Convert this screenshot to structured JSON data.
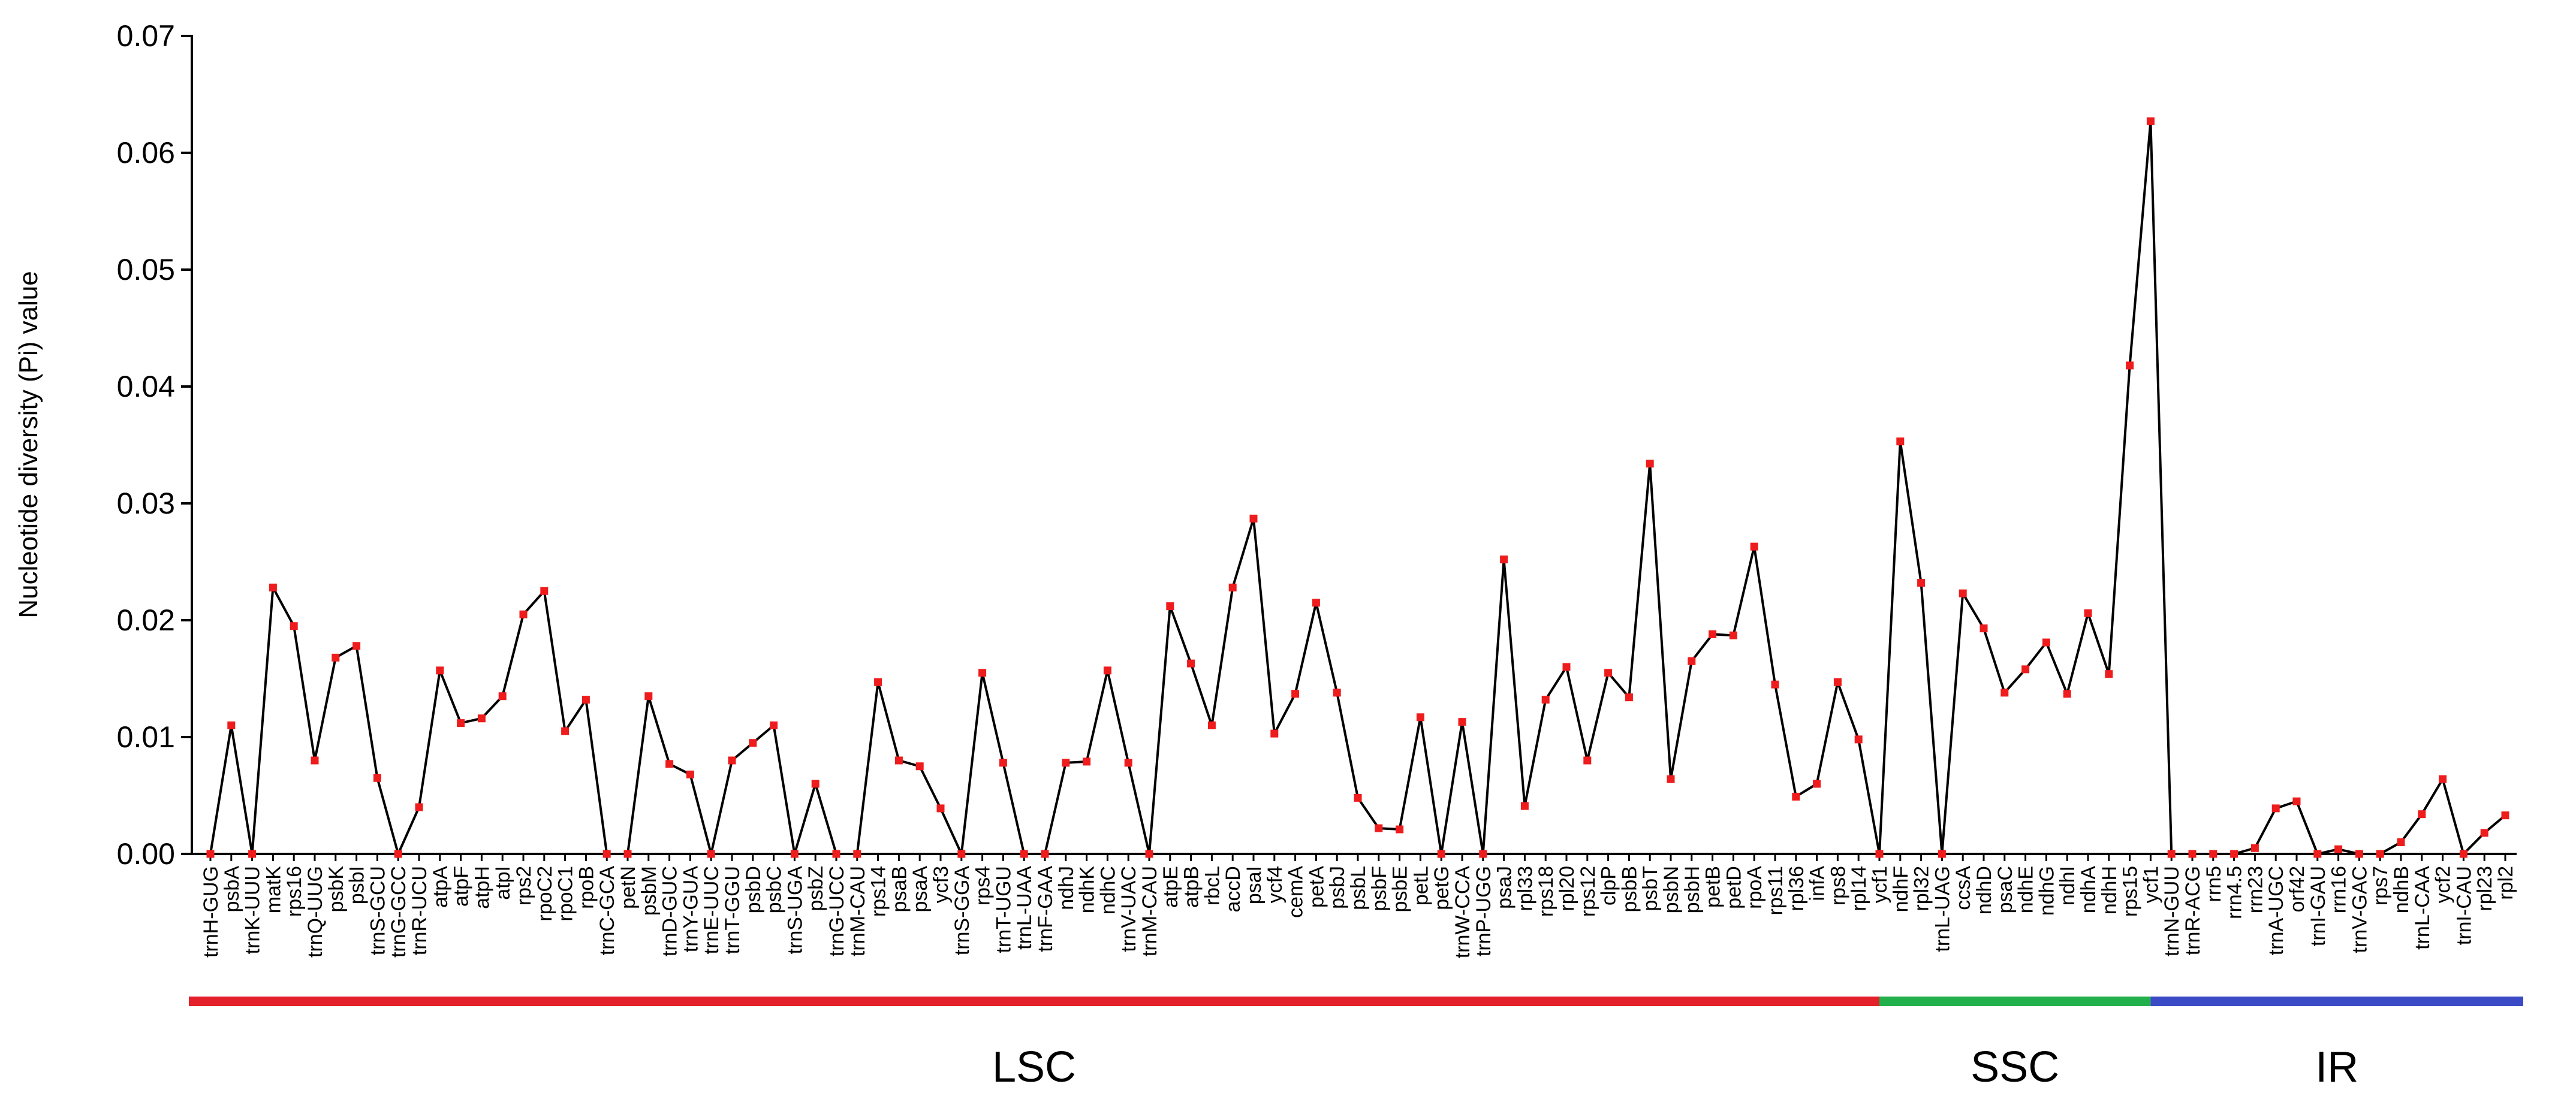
{
  "chart_data": {
    "type": "line",
    "y_label": "Nucleotide diversity (Pi) value",
    "categories": [
      "trnH-GUG",
      "psbA",
      "trnK-UUU",
      "matK",
      "rps16",
      "trnQ-UUG",
      "psbK",
      "psbI",
      "trnS-GCU",
      "trnG-GCC",
      "trnR-UCU",
      "atpA",
      "atpF",
      "atpH",
      "atpI",
      "rps2",
      "rpoC2",
      "rpoC1",
      "rpoB",
      "trnC-GCA",
      "petN",
      "psbM",
      "trnD-GUC",
      "trnY-GUA",
      "trnE-UUC",
      "trnT-GGU",
      "psbD",
      "psbC",
      "trnS-UGA",
      "psbZ",
      "trnG-UCC",
      "trnM-CAU",
      "rps14",
      "psaB",
      "psaA",
      "ycf3",
      "trnS-GGA",
      "rps4",
      "trnT-UGU",
      "trnL-UAA",
      "trnF-GAA",
      "ndhJ",
      "ndhK",
      "ndhC",
      "trnV-UAC",
      "trnM-CAU",
      "atpE",
      "atpB",
      "rbcL",
      "accD",
      "psaI",
      "ycf4",
      "cemA",
      "petA",
      "psbJ",
      "psbL",
      "psbF",
      "psbE",
      "petL",
      "petG",
      "trnW-CCA",
      "trnP-UGG",
      "psaJ",
      "rpl33",
      "rps18",
      "rpl20",
      "rps12",
      "clpP",
      "psbB",
      "psbT",
      "psbN",
      "psbH",
      "petB",
      "petD",
      "rpoA",
      "rps11",
      "rpl36",
      "infA",
      "rps8",
      "rpl14",
      "ycf1",
      "ndhF",
      "rpl32",
      "trnL-UAG",
      "ccsA",
      "ndhD",
      "psaC",
      "ndhE",
      "ndhG",
      "ndhI",
      "ndhA",
      "ndhH",
      "rps15",
      "ycf1",
      "trnN-GUU",
      "trnR-ACG",
      "rrn5",
      "rrn4.5",
      "rrn23",
      "trnA-UGC",
      "orf42",
      "trnI-GAU",
      "rrn16",
      "trnV-GAC",
      "rps7",
      "ndhB",
      "trnL-CAA",
      "ycf2",
      "trnI-CAU",
      "rpl23",
      "rpl2"
    ],
    "series": [
      {
        "color": "#000000",
        "marker_color": "#ee1c1c",
        "values": [
          0,
          0.011,
          0,
          0.0228,
          0.0195,
          0.008,
          0.0168,
          0.0178,
          0.0065,
          0,
          0.004,
          0.0157,
          0.0112,
          0.0116,
          0.0135,
          0.0205,
          0.0225,
          0.0105,
          0.0132,
          0,
          0,
          0.0135,
          0.0077,
          0.0068,
          0,
          0.008,
          0.0095,
          0.011,
          0,
          0.006,
          0,
          0,
          0.0147,
          0.008,
          0.0075,
          0.0039,
          0,
          0.0155,
          0.0078,
          0,
          0,
          0.0078,
          0.0079,
          0.0157,
          0.0078,
          0,
          0.0212,
          0.0163,
          0.011,
          0.0228,
          0.0287,
          0.0103,
          0.0137,
          0.0215,
          0.0138,
          0.0048,
          0.0022,
          0.0021,
          0.0117,
          0,
          0.0113,
          0,
          0.0252,
          0.0041,
          0.0132,
          0.016,
          0.008,
          0.0155,
          0.0134,
          0.0334,
          0.0064,
          0.0165,
          0.0188,
          0.0187,
          0.0263,
          0.0145,
          0.0049,
          0.006,
          0.0147,
          0.0098,
          0,
          0.0353,
          0.0232,
          0,
          0.0223,
          0.0193,
          0.0138,
          0.0158,
          0.0181,
          0.0137,
          0.0206,
          0.0154,
          0.0418,
          0.0627,
          0,
          0,
          0,
          0,
          0.0005,
          0.0039,
          0.0045,
          0,
          0.0004,
          0,
          0,
          0.001,
          0.0034,
          0.0064,
          0,
          0.0018,
          0.0033
        ]
      }
    ],
    "ylim": [
      0,
      0.07
    ],
    "yticks": [
      {
        "value": 0,
        "label": "0.00"
      },
      0.01,
      0.02,
      0.03,
      0.04,
      0.05,
      0.06,
      0.07
    ],
    "grid": false,
    "regions": [
      {
        "name": "LSC",
        "color": "#e4202a",
        "start": 0,
        "end": 80
      },
      {
        "name": "SSC",
        "color": "#22b04c",
        "start": 80,
        "end": 93
      },
      {
        "name": "IR",
        "color": "#3b4bc6",
        "start": 93,
        "end": 110
      }
    ]
  }
}
